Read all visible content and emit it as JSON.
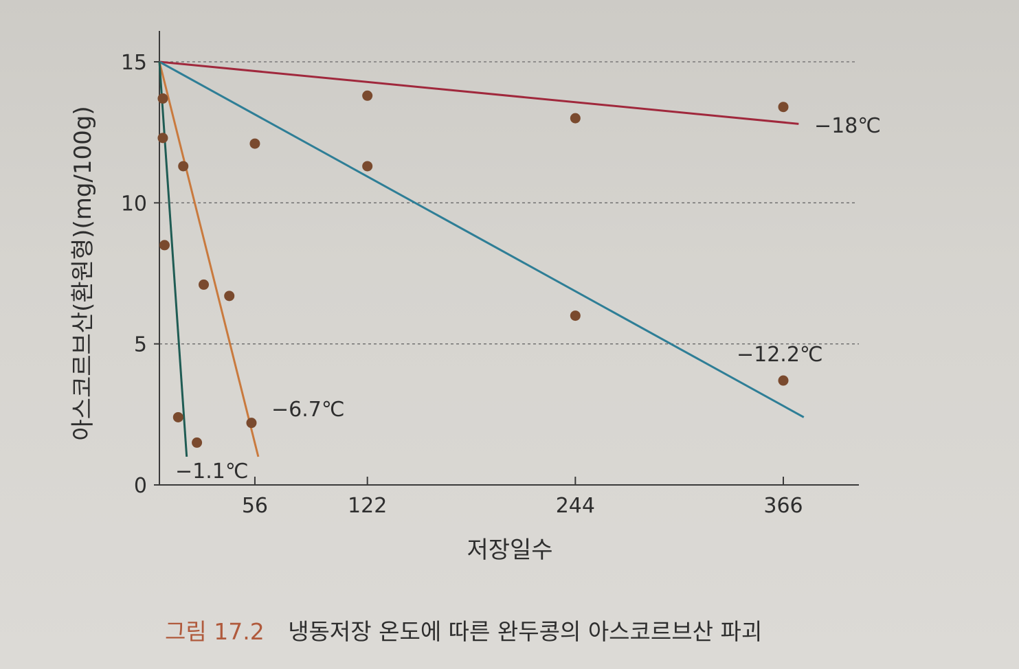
{
  "chart_data": {
    "type": "scatter",
    "title": "",
    "xlabel": "저장일수",
    "ylabel": "아스코르브산(환원형)(mg/100g)",
    "xlim": [
      0,
      375
    ],
    "ylim": [
      0,
      15
    ],
    "x_ticks": [
      56,
      122,
      244,
      366
    ],
    "y_ticks": [
      0,
      5,
      10,
      15
    ],
    "grid": "y-dashed",
    "series": [
      {
        "name": "−18℃",
        "color": "#a0283c",
        "line": [
          [
            0,
            15
          ],
          [
            375,
            12.8
          ]
        ],
        "points": [
          [
            122,
            13.8
          ],
          [
            244,
            13.0
          ],
          [
            366,
            13.4
          ]
        ]
      },
      {
        "name": "−12.2℃",
        "color": "#2e7e96",
        "line": [
          [
            0,
            15
          ],
          [
            378,
            2.4
          ]
        ],
        "points": [
          [
            2,
            12.3
          ],
          [
            56,
            12.1
          ],
          [
            122,
            11.3
          ],
          [
            244,
            6.0
          ],
          [
            366,
            3.7
          ]
        ]
      },
      {
        "name": "−6.7℃",
        "color": "#c97a3e",
        "line": [
          [
            0,
            15
          ],
          [
            58,
            1.0
          ]
        ],
        "points": [
          [
            2,
            13.7
          ],
          [
            14,
            11.3
          ],
          [
            26,
            7.1
          ],
          [
            41,
            6.7
          ],
          [
            54,
            2.2
          ]
        ]
      },
      {
        "name": "−1.1℃",
        "color": "#1f5c54",
        "line": [
          [
            0,
            15
          ],
          [
            16,
            1.0
          ]
        ],
        "points": [
          [
            3,
            8.5
          ],
          [
            11,
            2.4
          ],
          [
            22,
            1.5
          ]
        ]
      }
    ],
    "series_labels": [
      "−18℃",
      "−12.2℃",
      "−6.7℃",
      "−1.1℃"
    ]
  },
  "caption": {
    "figure_number": "그림 17.2",
    "text": "냉동저장 온도에 따른 완두콩의 아스코르브산 파괴"
  },
  "colors": {
    "point": "#7a4a2e",
    "axis": "#3a3a3a",
    "grid": "#6a6a6a"
  }
}
